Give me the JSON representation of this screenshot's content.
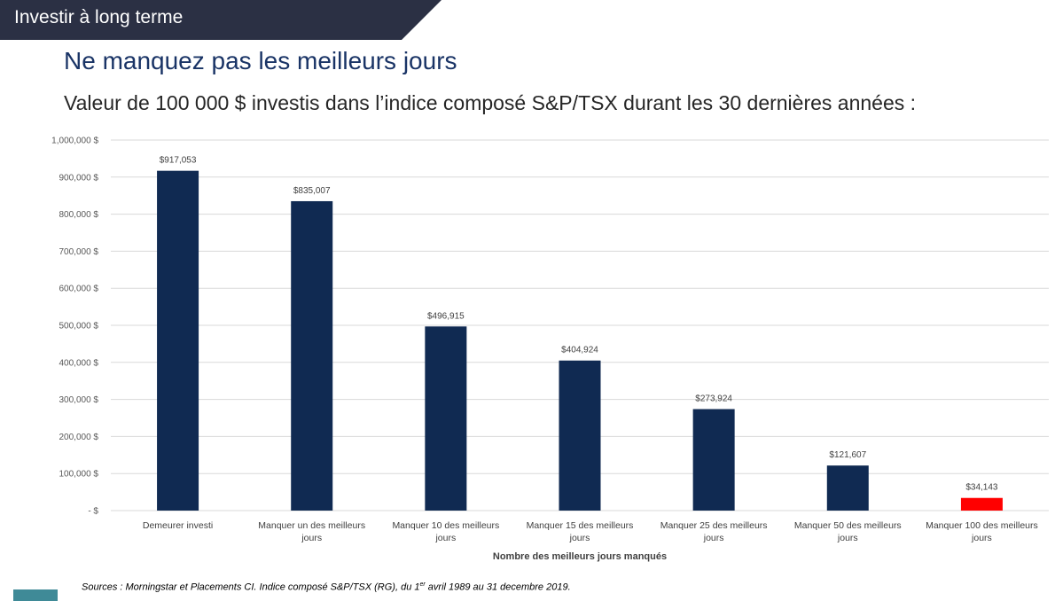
{
  "header": {
    "section_label": "Investir à long terme",
    "title": "Ne manquez pas les meilleurs jours",
    "subtitle": "Valeur de 100 000 $ investis dans l’indice composé S&P/TSX durant les 30 dernières années :"
  },
  "footer": {
    "source_before": "Sources : Morningstar et Placements CI. Indice composé S&P/TSX (RG), du 1",
    "source_sup": "er",
    "source_after": " avril 1989 au 31 decembre 2019."
  },
  "colors": {
    "banner": "#2b3044",
    "bar": "#102a52",
    "highlight": "#ff0000",
    "grid": "#d9d9d9",
    "accent_block": "#3f8a97"
  },
  "chart_data": {
    "type": "bar",
    "xlabel": "Nombre des meilleurs jours manqués",
    "ylabel": "",
    "ylim": [
      0,
      1000000
    ],
    "grid": true,
    "yticks": [
      {
        "value": 0,
        "label": "-  $"
      },
      {
        "value": 100000,
        "label": "100,000  $"
      },
      {
        "value": 200000,
        "label": "200,000  $"
      },
      {
        "value": 300000,
        "label": "300,000  $"
      },
      {
        "value": 400000,
        "label": "400,000  $"
      },
      {
        "value": 500000,
        "label": "500,000  $"
      },
      {
        "value": 600000,
        "label": "600,000  $"
      },
      {
        "value": 700000,
        "label": "700,000  $"
      },
      {
        "value": 800000,
        "label": "800,000  $"
      },
      {
        "value": 900000,
        "label": "900,000  $"
      },
      {
        "value": 1000000,
        "label": "1,000,000  $"
      }
    ],
    "categories": [
      [
        "Demeurer investi"
      ],
      [
        "Manquer un des meilleurs",
        "jours"
      ],
      [
        "Manquer 10 des meilleurs",
        "jours"
      ],
      [
        "Manquer 15 des meilleurs",
        "jours"
      ],
      [
        "Manquer 25 des meilleurs",
        "jours"
      ],
      [
        "Manquer 50 des meilleurs",
        "jours"
      ],
      [
        "Manquer 100 des meilleurs",
        "jours"
      ]
    ],
    "values": [
      917053,
      835007,
      496915,
      404924,
      273924,
      121607,
      34143
    ],
    "data_labels": [
      "$917,053",
      "$835,007",
      "$496,915",
      "$404,924",
      "$273,924",
      "$121,607",
      "$34,143"
    ],
    "highlight_index": 6
  }
}
